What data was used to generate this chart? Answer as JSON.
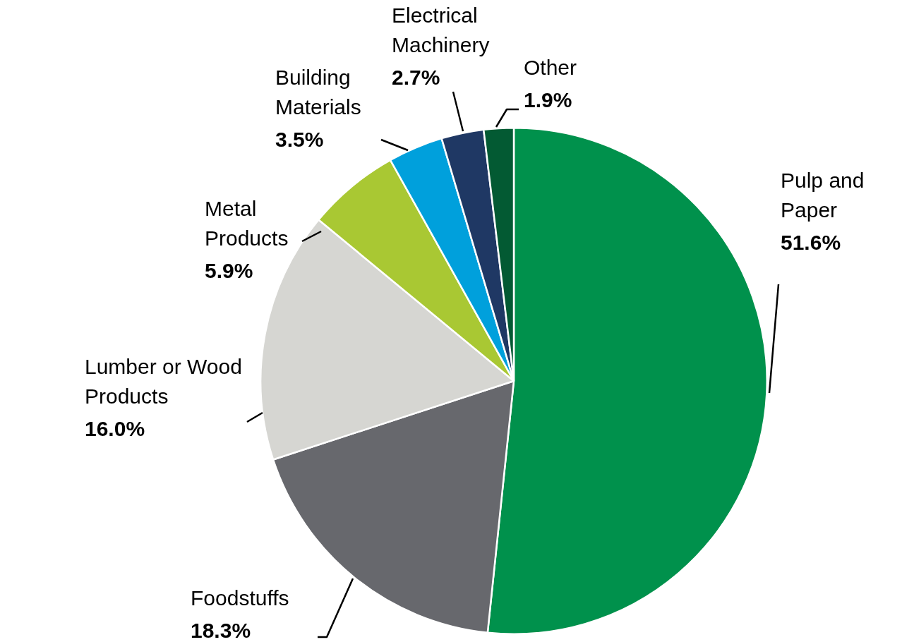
{
  "chart_data": {
    "type": "pie",
    "categories": [
      "Pulp and Paper",
      "Foodstuffs",
      "Lumber or Wood Products",
      "Metal Products",
      "Building Materials",
      "Electrical Machinery",
      "Other"
    ],
    "values": [
      51.6,
      18.3,
      16.0,
      5.9,
      3.5,
      2.7,
      1.9
    ],
    "value_labels": [
      "51.6%",
      "18.3%",
      "16.0%",
      "5.9%",
      "3.5%",
      "2.7%",
      "1.9%"
    ],
    "colors": [
      "#00914c",
      "#67686d",
      "#d6d6d2",
      "#a9c833",
      "#00a0dc",
      "#1f3864",
      "#035a33"
    ],
    "legend": false
  }
}
